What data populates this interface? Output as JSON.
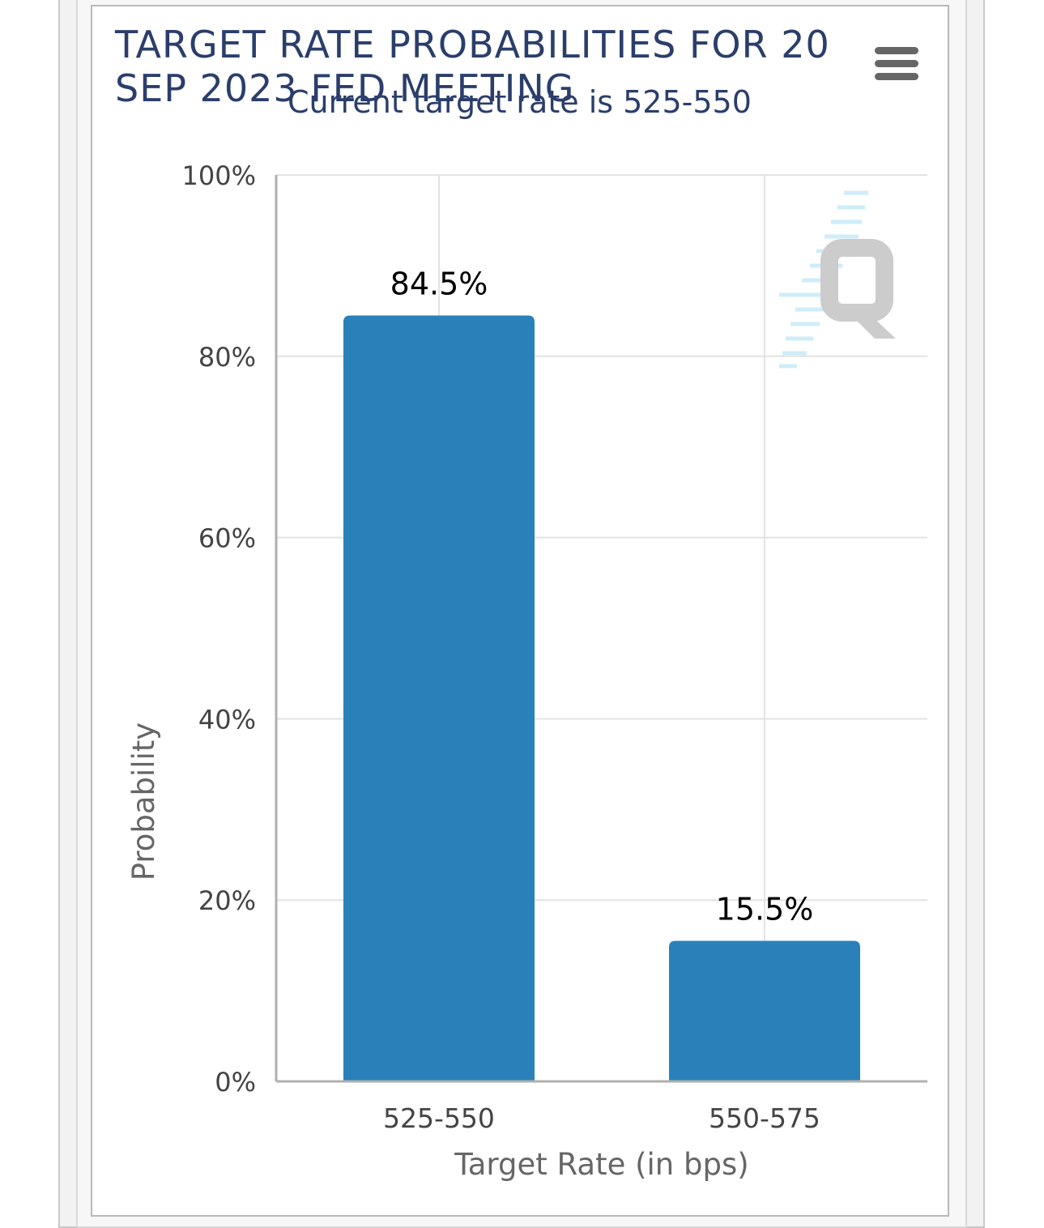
{
  "chart_title": "TARGET RATE PROBABILITIES FOR 20 SEP 2023 FED MEETING",
  "chart_subtitle": "Current target rate is 525-550",
  "menu_icon": "hamburger-menu-icon",
  "watermark_icon": "q-logo-icon",
  "colors": {
    "bar": "#2a81b9",
    "title": "#2b3e6b",
    "grid": "#e3e3e3",
    "axis": "#b0b0b0"
  },
  "chart_data": {
    "type": "bar",
    "title": "TARGET RATE PROBABILITIES FOR 20 SEP 2023 FED MEETING",
    "subtitle": "Current target rate is 525-550",
    "categories": [
      "525-550",
      "550-575"
    ],
    "values": [
      84.5,
      15.5
    ],
    "data_labels": [
      "84.5%",
      "15.5%"
    ],
    "xlabel": "Target Rate (in bps)",
    "ylabel": "Probability",
    "ylim": [
      0,
      100
    ],
    "yticks": [
      0,
      20,
      40,
      60,
      80,
      100
    ],
    "ytick_labels": [
      "0%",
      "20%",
      "40%",
      "60%",
      "80%",
      "100%"
    ],
    "grid": true,
    "legend": "none"
  }
}
